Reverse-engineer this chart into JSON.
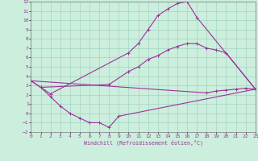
{
  "xlabel": "Windchill (Refroidissement éolien,°C)",
  "background_color": "#cceedd",
  "line_color": "#993399",
  "xlim": [
    0,
    23
  ],
  "ylim": [
    -2,
    12
  ],
  "xticks": [
    0,
    1,
    2,
    3,
    4,
    5,
    6,
    7,
    8,
    9,
    10,
    11,
    12,
    13,
    14,
    15,
    16,
    17,
    18,
    19,
    20,
    21,
    22,
    23
  ],
  "yticks": [
    -2,
    -1,
    0,
    1,
    2,
    3,
    4,
    5,
    6,
    7,
    8,
    9,
    10,
    11,
    12
  ],
  "curve1_x": [
    0,
    1,
    2,
    10,
    11,
    12,
    13,
    14,
    15,
    16,
    17,
    23
  ],
  "curve1_y": [
    3.5,
    2.8,
    2.1,
    6.5,
    7.5,
    9.0,
    10.5,
    11.2,
    11.8,
    12.0,
    10.3,
    2.6
  ],
  "curve2_x": [
    0,
    1,
    8,
    10,
    11,
    12,
    13,
    14,
    15,
    16,
    17,
    18,
    19,
    20,
    23
  ],
  "curve2_y": [
    3.5,
    2.8,
    3.1,
    4.5,
    5.0,
    5.8,
    6.2,
    6.8,
    7.2,
    7.5,
    7.5,
    7.0,
    6.8,
    6.5,
    2.6
  ],
  "curve3_x": [
    1,
    2,
    3,
    4,
    5,
    6,
    7,
    8,
    9,
    23
  ],
  "curve3_y": [
    2.8,
    1.8,
    0.8,
    0.0,
    -0.5,
    -1.0,
    -1.0,
    -1.5,
    -0.3,
    2.6
  ],
  "curve4_x": [
    0,
    18,
    19,
    20,
    21,
    22,
    23
  ],
  "curve4_y": [
    3.5,
    2.2,
    2.4,
    2.5,
    2.6,
    2.7,
    2.6
  ]
}
